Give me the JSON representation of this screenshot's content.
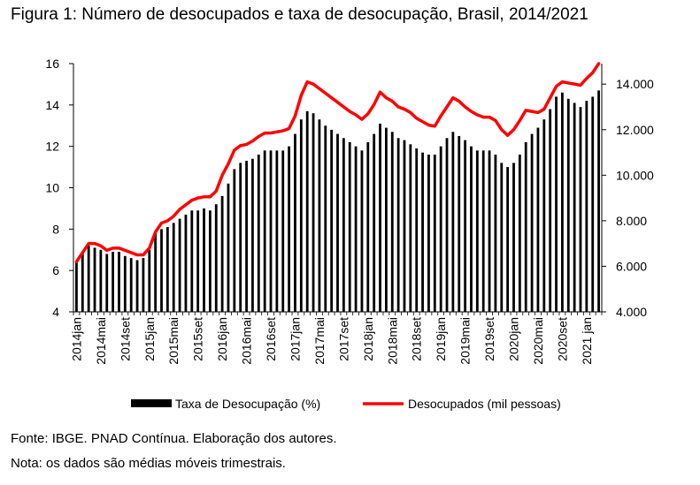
{
  "page": {
    "title": "Figura 1: Número de desocupados e taxa de desocupação, Brasil, 2014/2021",
    "source": "Fonte: IBGE. PNAD Contínua. Elaboração dos autores.",
    "note": "Nota: os dados são médias móveis trimestrais."
  },
  "chart_data": {
    "type": "bar+line",
    "categories": [
      "2014jan",
      "2014fev",
      "2014mar",
      "2014abr",
      "2014mai",
      "2014jun",
      "2014jul",
      "2014ago",
      "2014set",
      "2014out",
      "2014nov",
      "2014dez",
      "2015jan",
      "2015fev",
      "2015mar",
      "2015abr",
      "2015mai",
      "2015jun",
      "2015jul",
      "2015ago",
      "2015set",
      "2015out",
      "2015nov",
      "2015dez",
      "2016jan",
      "2016fev",
      "2016mar",
      "2016abr",
      "2016mai",
      "2016jun",
      "2016jul",
      "2016ago",
      "2016set",
      "2016out",
      "2016nov",
      "2016dez",
      "2017jan",
      "2017fev",
      "2017mar",
      "2017abr",
      "2017mai",
      "2017jun",
      "2017jul",
      "2017ago",
      "2017set",
      "2017out",
      "2017nov",
      "2017dez",
      "2018jan",
      "2018fev",
      "2018mar",
      "2018abr",
      "2018mai",
      "2018jun",
      "2018jul",
      "2018ago",
      "2018set",
      "2018out",
      "2018nov",
      "2018dez",
      "2019jan",
      "2019fev",
      "2019mar",
      "2019abr",
      "2019mai",
      "2019jun",
      "2019jul",
      "2019ago",
      "2019set",
      "2019out",
      "2019nov",
      "2019dez",
      "2020jan",
      "2020fev",
      "2020mar",
      "2020abr",
      "2020mai",
      "2020jun",
      "2020jul",
      "2020ago",
      "2020set",
      "2020out",
      "2020nov",
      "2020dez",
      "2021jan",
      "2021fev",
      "2021mar"
    ],
    "tick_labels": [
      "2014jan",
      "2014mai",
      "2014set",
      "2015jan",
      "2015mai",
      "2015set",
      "2016jan",
      "2016mai",
      "2016set",
      "2017jan",
      "2017mai",
      "2017set",
      "2018jan",
      "2018mai",
      "2018set",
      "2019jan",
      "2019mai",
      "2019set",
      "2020jan",
      "2020mai",
      "2020set",
      "2021 jan"
    ],
    "series": [
      {
        "name": "Taxa de Desocupação (%)",
        "type": "bar",
        "axis": "left",
        "color": "#000000",
        "values": [
          6.4,
          6.8,
          7.2,
          7.1,
          7.0,
          6.8,
          6.9,
          6.9,
          6.7,
          6.6,
          6.5,
          6.6,
          7.0,
          7.8,
          8.0,
          8.1,
          8.3,
          8.5,
          8.7,
          8.9,
          8.9,
          9.0,
          8.9,
          9.2,
          9.6,
          10.2,
          10.9,
          11.2,
          11.3,
          11.4,
          11.6,
          11.8,
          11.8,
          11.8,
          11.8,
          12.0,
          12.6,
          13.3,
          13.7,
          13.6,
          13.3,
          13.0,
          12.8,
          12.6,
          12.4,
          12.2,
          12.0,
          11.8,
          12.2,
          12.6,
          13.1,
          12.9,
          12.7,
          12.4,
          12.3,
          12.1,
          11.9,
          11.7,
          11.6,
          11.6,
          12.0,
          12.4,
          12.7,
          12.5,
          12.3,
          12.0,
          11.8,
          11.8,
          11.8,
          11.6,
          11.2,
          11.0,
          11.2,
          11.6,
          12.2,
          12.6,
          12.9,
          13.3,
          13.8,
          14.4,
          14.6,
          14.3,
          14.1,
          13.9,
          14.2,
          14.4,
          14.7
        ]
      },
      {
        "name": "Desocupados (mil pessoas)",
        "type": "line",
        "axis": "right",
        "color": "#ff0000",
        "values": [
          6200,
          6600,
          7000,
          7000,
          6900,
          6700,
          6800,
          6800,
          6700,
          6600,
          6500,
          6500,
          6800,
          7500,
          7900,
          8000,
          8200,
          8500,
          8700,
          8900,
          9000,
          9050,
          9050,
          9300,
          10000,
          10500,
          11100,
          11300,
          11350,
          11500,
          11700,
          11850,
          11850,
          11900,
          11950,
          12050,
          12600,
          13500,
          14100,
          14000,
          13800,
          13600,
          13400,
          13200,
          13000,
          12800,
          12650,
          12450,
          12700,
          13100,
          13650,
          13400,
          13250,
          13000,
          12900,
          12750,
          12500,
          12350,
          12200,
          12150,
          12600,
          13000,
          13400,
          13250,
          13000,
          12800,
          12650,
          12550,
          12550,
          12400,
          12000,
          11750,
          12000,
          12400,
          12850,
          12800,
          12750,
          12900,
          13400,
          13900,
          14100,
          14050,
          14000,
          13950,
          14250,
          14500,
          14900
        ]
      }
    ],
    "y_left": {
      "min": 4,
      "max": 16,
      "step": 2,
      "tick_labels": [
        "4",
        "6",
        "8",
        "10",
        "12",
        "14",
        "16"
      ]
    },
    "y_right": {
      "min": 4000,
      "max": 14900,
      "step": 2000,
      "tick_labels": [
        "4.000",
        "6.000",
        "8.000",
        "10.000",
        "12.000",
        "14.000"
      ]
    },
    "legend": {
      "position": "bottom",
      "entries": [
        "Taxa de Desocupação (%)",
        "Desocupados (mil pessoas)"
      ]
    },
    "grid": false
  }
}
